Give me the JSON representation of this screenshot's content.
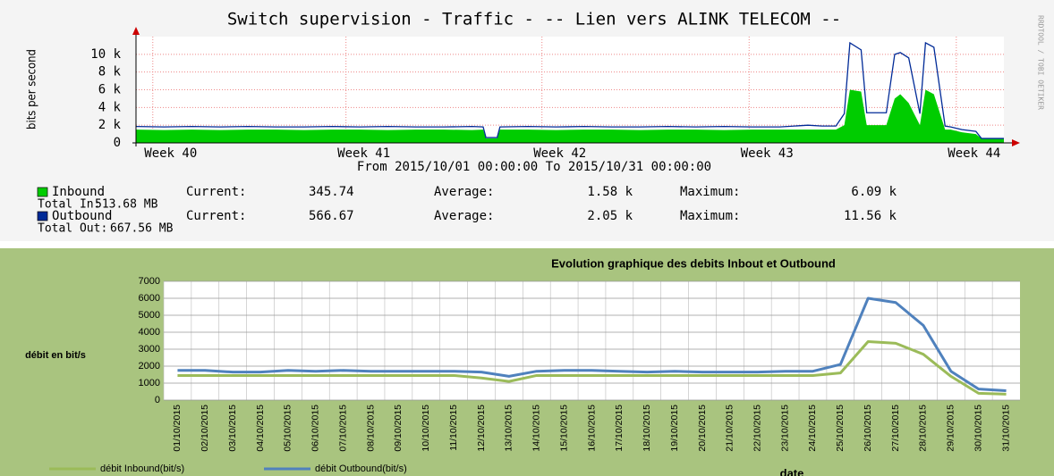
{
  "chart_data": [
    {
      "type": "area",
      "title": "Switch supervision - Traffic - -- Lien vers ALINK TELECOM --",
      "subtitle": "From 2015/10/01 00:00:00 To 2015/10/31 00:00:00",
      "ylabel": "bits per second",
      "side_note": "RRDTOOL / TOBI OETIKER",
      "xlim": [
        0,
        31
      ],
      "xticks": [
        {
          "value": 0.6,
          "label": "Week 40"
        },
        {
          "value": 7.5,
          "label": "Week 41"
        },
        {
          "value": 14.5,
          "label": "Week 42"
        },
        {
          "value": 21.9,
          "label": "Week 43"
        },
        {
          "value": 29.3,
          "label": "Week 44"
        }
      ],
      "ylim": [
        0,
        12000
      ],
      "yticks": [
        0,
        {
          "value": 2000,
          "label": "2 k"
        },
        {
          "value": 4000,
          "label": "4 k"
        },
        {
          "value": 6000,
          "label": "6 k"
        },
        {
          "value": 8000,
          "label": "8 k"
        },
        {
          "value": 10000,
          "label": "10 k"
        }
      ],
      "grid": true,
      "x": [
        0,
        1,
        2,
        3,
        4,
        5,
        6,
        7,
        8,
        9,
        10,
        11,
        12,
        12.4,
        12.5,
        12.9,
        13,
        14,
        15,
        16,
        17,
        18,
        19,
        20,
        21,
        22,
        23,
        24,
        24.5,
        25,
        25.3,
        25.5,
        25.9,
        26.1,
        26.4,
        26.6,
        26.8,
        27.1,
        27.3,
        27.6,
        28,
        28.2,
        28.5,
        28.9,
        29.1,
        29.5,
        30,
        30.2,
        31
      ],
      "series": [
        {
          "name": "Inbound",
          "color": "#00cc00",
          "values": [
            1500,
            1450,
            1500,
            1450,
            1500,
            1500,
            1450,
            1500,
            1500,
            1450,
            1500,
            1500,
            1450,
            1500,
            500,
            500,
            1500,
            1500,
            1450,
            1500,
            1500,
            1450,
            1500,
            1500,
            1450,
            1500,
            1500,
            1500,
            1500,
            1500,
            2000,
            6000,
            5800,
            2000,
            2000,
            2000,
            2000,
            5000,
            5500,
            4500,
            2000,
            6000,
            5500,
            1500,
            1500,
            1200,
            1000,
            500,
            500
          ],
          "stats": {
            "current_label": "Current:",
            "current": "345.74",
            "average_label": "Average:",
            "average": "1.58 k",
            "maximum_label": "Maximum:",
            "maximum": "6.09 k",
            "total_label": "Total In:",
            "total": "513.68 MB"
          }
        },
        {
          "name": "Outbound",
          "color": "#002a97",
          "values": [
            1850,
            1800,
            1850,
            1800,
            1850,
            1800,
            1800,
            1850,
            1800,
            1850,
            1800,
            1800,
            1850,
            1800,
            600,
            600,
            1800,
            1850,
            1800,
            1850,
            1800,
            1800,
            1850,
            1800,
            1850,
            1800,
            1800,
            2000,
            1900,
            1900,
            3300,
            11300,
            10500,
            3400,
            3400,
            3400,
            3400,
            10000,
            10200,
            9600,
            3300,
            11300,
            10800,
            1900,
            1800,
            1500,
            1300,
            500,
            500
          ],
          "stats": {
            "current_label": "Current:",
            "current": "566.67",
            "average_label": "Average:",
            "average": "2.05 k",
            "maximum_label": "Maximum:",
            "maximum": "11.56 k",
            "total_label": "Total Out:",
            "total": "667.56 MB"
          }
        }
      ]
    },
    {
      "type": "line",
      "title": "Evolution graphique des debits Inbout et Outbound",
      "ylabel": "débit en bit/s",
      "xlabel": "date",
      "categories": [
        "01/10/2015",
        "02/10/2015",
        "03/10/2015",
        "04/10/2015",
        "05/10/2015",
        "06/10/2015",
        "07/10/2015",
        "08/10/2015",
        "09/10/2015",
        "10/10/2015",
        "11/10/2015",
        "12/10/2015",
        "13/10/2015",
        "14/10/2015",
        "15/10/2015",
        "16/10/2015",
        "17/10/2015",
        "18/10/2015",
        "19/10/2015",
        "20/10/2015",
        "21/10/2015",
        "22/10/2015",
        "23/10/2015",
        "24/10/2015",
        "25/10/2015",
        "26/10/2015",
        "27/10/2015",
        "28/10/2015",
        "29/10/2015",
        "30/10/2015",
        "31/10/2015"
      ],
      "ylim": [
        0,
        7000
      ],
      "yticks": [
        0,
        1000,
        2000,
        3000,
        4000,
        5000,
        6000,
        7000
      ],
      "grid": true,
      "series": [
        {
          "name": "débit Inbound(bit/s)",
          "color": "#9bbb59",
          "values": [
            1450,
            1450,
            1450,
            1450,
            1450,
            1450,
            1450,
            1450,
            1450,
            1450,
            1450,
            1300,
            1100,
            1450,
            1450,
            1450,
            1450,
            1450,
            1450,
            1450,
            1450,
            1450,
            1450,
            1450,
            1600,
            3450,
            3350,
            2700,
            1400,
            400,
            350
          ]
        },
        {
          "name": "débit Outbound(bit/s)",
          "color": "#4f81bd",
          "values": [
            1750,
            1750,
            1650,
            1650,
            1750,
            1700,
            1750,
            1700,
            1700,
            1700,
            1700,
            1650,
            1400,
            1700,
            1750,
            1750,
            1700,
            1650,
            1700,
            1650,
            1650,
            1650,
            1700,
            1700,
            2100,
            6000,
            5750,
            4400,
            1700,
            650,
            550
          ]
        }
      ]
    }
  ]
}
